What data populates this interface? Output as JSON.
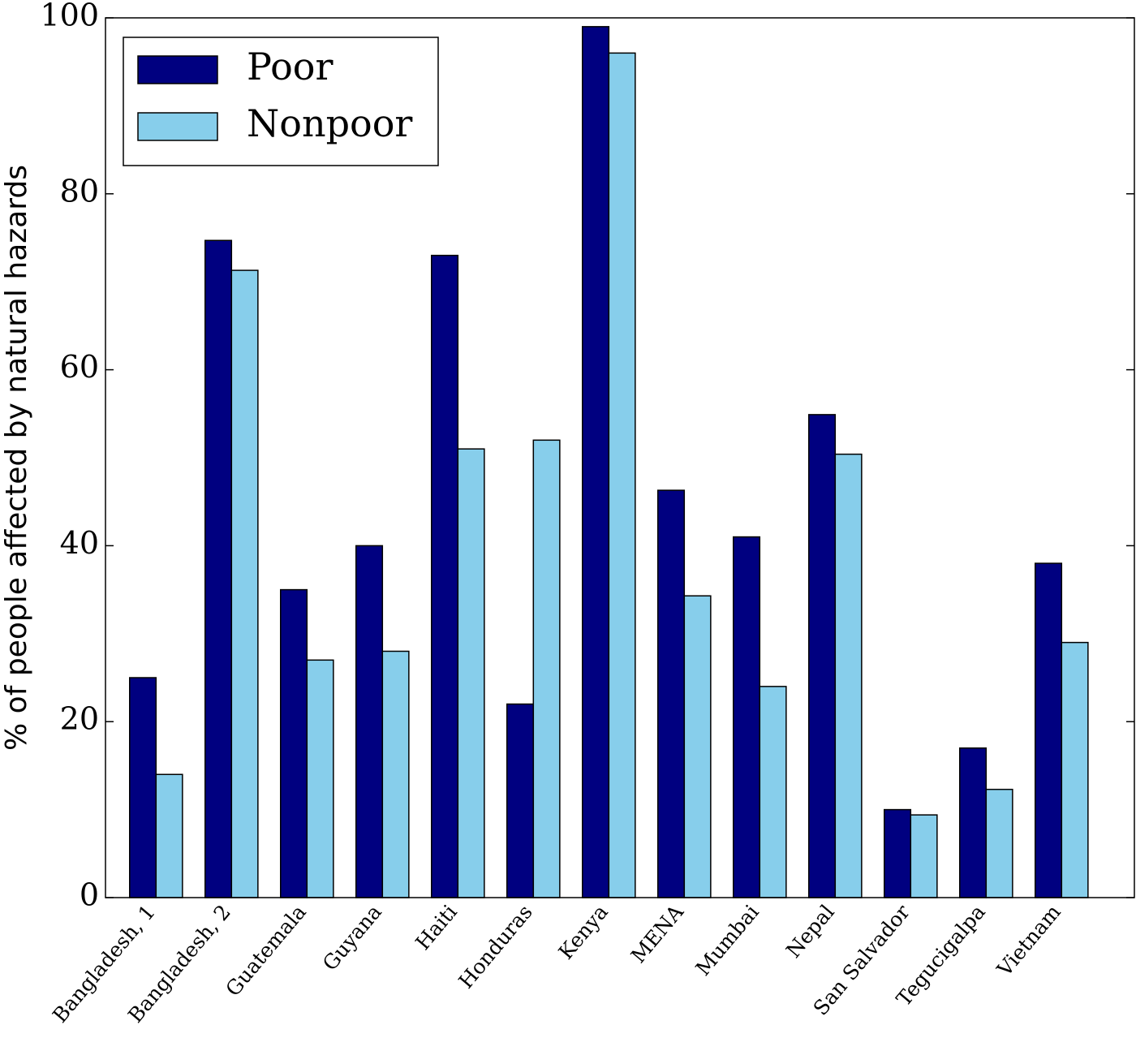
{
  "chart_data": {
    "type": "bar",
    "y_label": "% of people affected by natural hazards",
    "categories": [
      "Bangladesh, 1",
      "Bangladesh, 2",
      "Guatemala",
      "Guyana",
      "Haiti",
      "Honduras",
      "Kenya",
      "MENA",
      "Mumbai",
      "Nepal",
      "San Salvador",
      "Tegucigalpa",
      "Vietnam"
    ],
    "series": [
      {
        "name": "Poor",
        "color": "#000080",
        "values": [
          25,
          74.7,
          35,
          40,
          73,
          22,
          99,
          46.3,
          41,
          54.9,
          10,
          17,
          38
        ]
      },
      {
        "name": "Nonpoor",
        "color": "#87ceeb",
        "values": [
          14,
          71.3,
          27,
          28,
          51,
          52,
          96,
          34.3,
          24,
          50.4,
          9.4,
          12.3,
          29
        ]
      }
    ],
    "ylim": [
      0,
      100
    ],
    "yticks": [
      0,
      20,
      40,
      60,
      80,
      100
    ],
    "grid": false,
    "legend": "upper left"
  }
}
